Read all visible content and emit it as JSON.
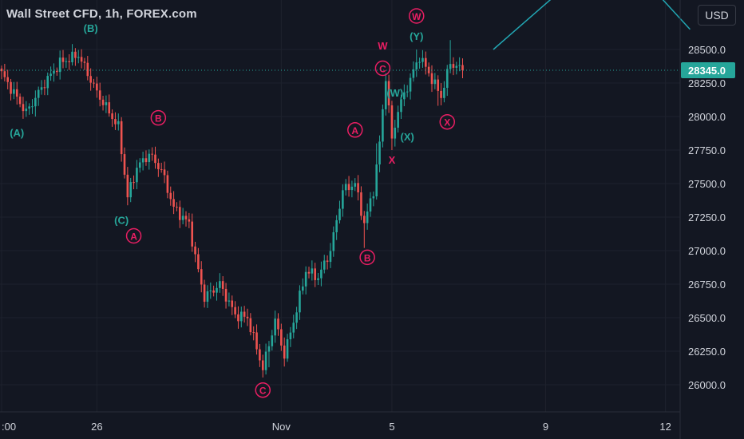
{
  "header": {
    "title": "Wall Street CFD, 1h, FOREX.com",
    "currency": "USD"
  },
  "colors": {
    "background": "#131722",
    "up": "#26a69a",
    "down": "#ef5350",
    "wave_green": "#26a69a",
    "wave_red": "#e91e63",
    "axis_text": "#d1d4dc",
    "price_tag": "#26a69a",
    "projection": "#22a6b3"
  },
  "chart_data": {
    "type": "candlestick",
    "title": "Wall Street CFD, 1h, FOREX.com",
    "y_ticks": [
      26000.0,
      26250.0,
      26500.0,
      26750.0,
      27000.0,
      27250.0,
      27500.0,
      27750.0,
      28000.0,
      28250.0,
      28500.0
    ],
    "y_tick_labels": [
      "26000.0",
      "26250.0",
      "26500.0",
      "26750.0",
      "27000.0",
      "27250.0",
      "27500.0",
      "27750.0",
      "28000.0",
      "28250.0",
      "28500.0"
    ],
    "ylim": [
      25930,
      29000
    ],
    "x_ticks": [
      {
        "label": ":00",
        "index": 0
      },
      {
        "label": "26",
        "index": 31
      },
      {
        "label": "Nov",
        "index": 91
      },
      {
        "label": "5",
        "index": 127
      },
      {
        "label": "9",
        "index": 177
      },
      {
        "label": "12",
        "index": 216
      }
    ],
    "last_price": 28345.0,
    "last_price_label": "28345.0",
    "projection": [
      {
        "index": 160,
        "value": 28500
      },
      {
        "index": 180,
        "value": 28900
      },
      {
        "index": 210,
        "value": 29000
      },
      {
        "index": 224,
        "value": 28650
      }
    ],
    "anchors": [
      {
        "index": 0,
        "value": 28320
      },
      {
        "index": 8,
        "value": 28030
      },
      {
        "index": 14,
        "value": 28250
      },
      {
        "index": 19,
        "value": 28400
      },
      {
        "index": 25,
        "value": 28460
      },
      {
        "index": 31,
        "value": 28180
      },
      {
        "index": 38,
        "value": 27920
      },
      {
        "index": 41,
        "value": 27400
      },
      {
        "index": 44,
        "value": 27620
      },
      {
        "index": 48,
        "value": 27720
      },
      {
        "index": 52,
        "value": 27600
      },
      {
        "index": 56,
        "value": 27320
      },
      {
        "index": 61,
        "value": 27200
      },
      {
        "index": 63,
        "value": 26950
      },
      {
        "index": 66,
        "value": 26650
      },
      {
        "index": 71,
        "value": 26750
      },
      {
        "index": 76,
        "value": 26520
      },
      {
        "index": 80,
        "value": 26500
      },
      {
        "index": 85,
        "value": 26120
      },
      {
        "index": 89,
        "value": 26480
      },
      {
        "index": 92,
        "value": 26220
      },
      {
        "index": 96,
        "value": 26560
      },
      {
        "index": 99,
        "value": 26850
      },
      {
        "index": 103,
        "value": 26800
      },
      {
        "index": 107,
        "value": 27000
      },
      {
        "index": 111,
        "value": 27450
      },
      {
        "index": 115,
        "value": 27500
      },
      {
        "index": 118,
        "value": 27200
      },
      {
        "index": 121,
        "value": 27450
      },
      {
        "index": 123,
        "value": 27800
      },
      {
        "index": 125,
        "value": 28300
      },
      {
        "index": 127,
        "value": 27820
      },
      {
        "index": 129,
        "value": 28050
      },
      {
        "index": 133,
        "value": 28280
      },
      {
        "index": 136,
        "value": 28450
      },
      {
        "index": 140,
        "value": 28280
      },
      {
        "index": 143,
        "value": 28150
      },
      {
        "index": 146,
        "value": 28400
      },
      {
        "index": 150,
        "value": 28345
      }
    ],
    "spikes": [
      {
        "index": 11,
        "low": 28000
      },
      {
        "index": 41,
        "low": 27350
      },
      {
        "index": 85,
        "low": 26060
      },
      {
        "index": 87,
        "low": 26130
      },
      {
        "index": 118,
        "low": 27020
      },
      {
        "index": 122,
        "high": 27800
      },
      {
        "index": 127,
        "low": 27750
      },
      {
        "index": 135,
        "high": 28500
      },
      {
        "index": 142,
        "low": 28080
      },
      {
        "index": 146,
        "high": 28570
      }
    ],
    "wave_labels": [
      {
        "text": "(A)",
        "index": 5,
        "value": 27880,
        "color": "green",
        "circled": false
      },
      {
        "text": "(B)",
        "index": 29,
        "value": 28660,
        "color": "green",
        "circled": false
      },
      {
        "text": "(C)",
        "index": 39,
        "value": 27230,
        "color": "green",
        "circled": false
      },
      {
        "text": "A",
        "index": 43,
        "value": 27110,
        "color": "red",
        "circled": true
      },
      {
        "text": "B",
        "index": 51,
        "value": 27990,
        "color": "red",
        "circled": true
      },
      {
        "text": "C",
        "index": 85,
        "value": 25960,
        "color": "red",
        "circled": true
      },
      {
        "text": "A",
        "index": 115,
        "value": 27900,
        "color": "red",
        "circled": true
      },
      {
        "text": "B",
        "index": 119,
        "value": 26950,
        "color": "red",
        "circled": true
      },
      {
        "text": "C",
        "index": 124,
        "value": 28360,
        "color": "red",
        "circled": true
      },
      {
        "text": "W",
        "index": 124,
        "value": 28530,
        "color": "red",
        "circled": false
      },
      {
        "text": "(W)",
        "index": 128,
        "value": 28180,
        "color": "green",
        "circled": false
      },
      {
        "text": "(X)",
        "index": 132,
        "value": 27850,
        "color": "green",
        "circled": false
      },
      {
        "text": "X",
        "index": 127,
        "value": 27680,
        "color": "red",
        "circled": false
      },
      {
        "text": "W",
        "index": 135,
        "value": 28750,
        "color": "red",
        "circled": true
      },
      {
        "text": "(Y)",
        "index": 135,
        "value": 28600,
        "color": "green",
        "circled": false
      },
      {
        "text": "X",
        "index": 145,
        "value": 27960,
        "color": "red",
        "circled": true
      }
    ]
  }
}
